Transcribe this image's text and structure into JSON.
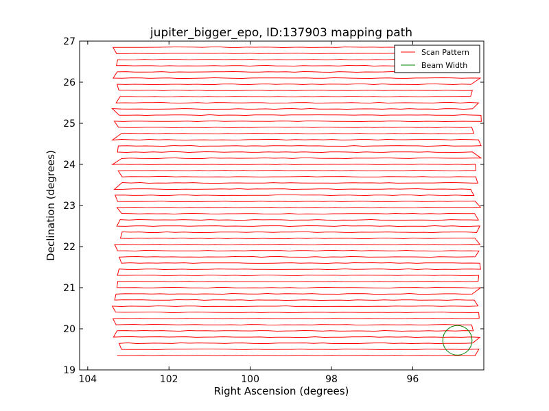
{
  "chart_data": {
    "type": "line",
    "title": "jupiter_bigger_epo, ID:137903 mapping path",
    "xlabel": "Right Ascension (degrees)",
    "ylabel": "Declination (degrees)",
    "xlim": [
      104.2,
      94.25
    ],
    "ylim": [
      19,
      27
    ],
    "x_ticks": [
      104,
      102,
      100,
      98,
      96
    ],
    "y_ticks": [
      19,
      20,
      21,
      22,
      23,
      24,
      25,
      26,
      27
    ],
    "grid": false,
    "legend": {
      "location": "top-right",
      "entries": [
        {
          "label": "Scan Pattern",
          "color": "#ff0000"
        },
        {
          "label": "Beam Width",
          "color": "#008000"
        }
      ]
    },
    "scan": {
      "dec_start": 19.35,
      "dec_end": 26.85,
      "row_spacing": 0.15,
      "ra_east": 103.4,
      "ra_west": 94.3
    },
    "beam": {
      "center_ra": 94.9,
      "center_dec": 19.72,
      "radius_deg": 0.36
    },
    "series": [
      {
        "name": "Scan Pattern",
        "color": "#ff0000"
      },
      {
        "name": "Beam Width",
        "color": "#008000"
      }
    ]
  }
}
